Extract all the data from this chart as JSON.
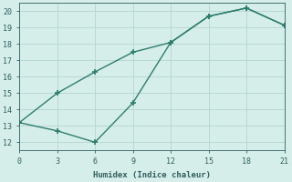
{
  "xlabel": "Humidex (Indice chaleur)",
  "line1_x": [
    0,
    3,
    6,
    9,
    12,
    15,
    18,
    21
  ],
  "line1_y": [
    13.2,
    15.0,
    16.3,
    17.5,
    18.1,
    19.7,
    20.2,
    19.15
  ],
  "line2_x": [
    0,
    3,
    6,
    9,
    12,
    15,
    18,
    21
  ],
  "line2_y": [
    13.2,
    12.7,
    12.0,
    14.4,
    18.1,
    19.7,
    20.2,
    19.15
  ],
  "line_color": "#2d7d6e",
  "marker": "+",
  "xlim": [
    0,
    21
  ],
  "ylim": [
    11.5,
    20.5
  ],
  "xticks": [
    0,
    3,
    6,
    9,
    12,
    15,
    18,
    21
  ],
  "yticks": [
    12,
    13,
    14,
    15,
    16,
    17,
    18,
    19,
    20
  ],
  "bg_color": "#d6eeea",
  "grid_color": "#b8d8d4",
  "font_color": "#2e5e5e",
  "font_family": "monospace",
  "linewidth": 1.0,
  "markersize": 5
}
